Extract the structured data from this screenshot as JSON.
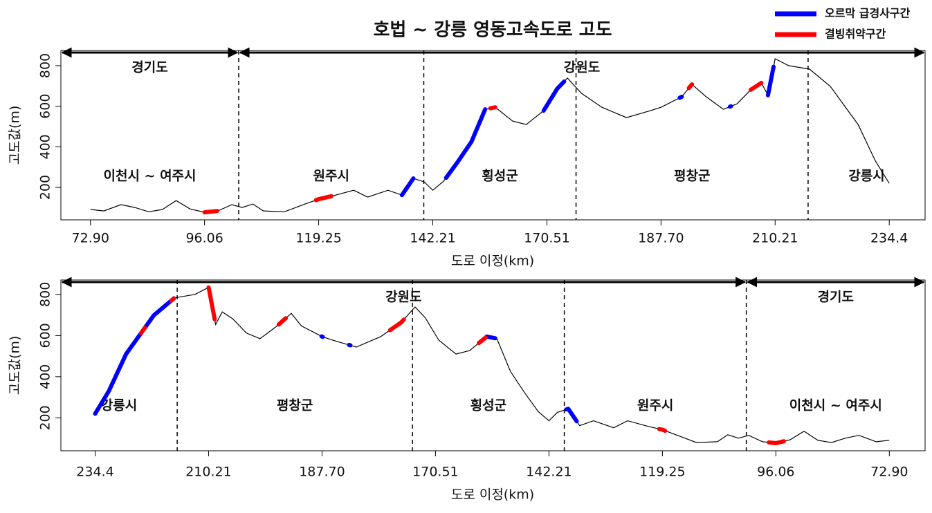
{
  "chart_data": [
    {
      "type": "line",
      "title": "호법 ~ 강릉 영동고속도로 고도",
      "xlabel": "도로 이정(km)",
      "ylabel": "고도값(m)",
      "xlim": [
        66.9,
        242.0
      ],
      "xticks": [
        {
          "value": 72.9,
          "label": "72.90"
        },
        96.06,
        119.25,
        142.21,
        170.51,
        {
          "value": 187.7,
          "label": "187.70"
        },
        210.21,
        234.4
      ],
      "ylim": [
        40,
        875
      ],
      "yticks": [
        200,
        400,
        600,
        800
      ],
      "color": "#000000",
      "x": [
        72.9,
        75.6,
        79.1,
        81.9,
        84.7,
        87.5,
        90.3,
        93.1,
        96.06,
        98.8,
        101.6,
        103.7,
        105.9,
        108.0,
        112.3,
        116.5,
        119.25,
        122.2,
        126.3,
        129.1,
        133.2,
        136.0,
        138.3,
        140.5,
        142.21,
        144.9,
        148.3,
        151.8,
        155.2,
        157.7,
        162.0,
        165.4,
        169.7,
        172.07,
        173.6,
        175.7,
        178.8,
        182.5,
        186.1,
        187.7,
        191.8,
        193.8,
        196.6,
        200.0,
        202.7,
        205.4,
        207.5,
        208.8,
        210.21,
        213.1,
        217.5,
        221.9,
        227.8,
        231.5,
        234.4
      ],
      "values": [
        91,
        84,
        115,
        101,
        80,
        91,
        135,
        94,
        77,
        84,
        115,
        101,
        118,
        84,
        80,
        118,
        142,
        159,
        186,
        152,
        186,
        162,
        244,
        227,
        186,
        231,
        323,
        425,
        585,
        595,
        527,
        510,
        578,
        687,
        739,
        664,
        595,
        544,
        578,
        595,
        647,
        708,
        647,
        585,
        612,
        681,
        715,
        654,
        834,
        800,
        783,
        698,
        510,
        329,
        220
      ],
      "series": [
        {
          "name": "오르막 급경사구간",
          "color": "#0000ff",
          "segments": [
            [
              136.0,
              138.3
            ],
            [
              145.5,
              155.2
            ],
            [
              169.7,
              173.1
            ],
            [
              191.4,
              191.8
            ],
            [
              201.3,
              201.5
            ],
            [
              208.8,
              209.9
            ]
          ]
        },
        {
          "name": "결빙취약구간",
          "color": "#ff0000",
          "segments": [
            [
              96.06,
              98.6
            ],
            [
              118.7,
              121.8
            ],
            [
              156.5,
              157.7
            ],
            [
              193.2,
              193.8
            ],
            [
              205.4,
              207.5
            ]
          ]
        }
      ],
      "boundaries": [
        103.0,
        140.4,
        174.9,
        217.2
      ],
      "regions": [
        "이천시 ~ 여주시",
        "원주시",
        "횡성군",
        "평창군",
        "강릉시"
      ],
      "provinces": [
        "경기도",
        "강원도"
      ]
    },
    {
      "type": "line",
      "xlabel": "도로 이정(km)",
      "ylabel": "고도값(m)",
      "xlim": [
        241.7,
        65.6
      ],
      "xticks": [
        234.4,
        210.21,
        {
          "value": 187.7,
          "label": "187.70"
        },
        170.51,
        142.21,
        119.25,
        96.06,
        {
          "value": 72.9,
          "label": "72.90"
        }
      ],
      "ylim": [
        40,
        870
      ],
      "yticks": [
        200,
        400,
        600,
        800
      ],
      "color": "#000000",
      "x": [
        72.9,
        75.6,
        79.1,
        81.9,
        84.7,
        87.5,
        90.3,
        93.1,
        96.06,
        98.8,
        101.6,
        103.7,
        105.9,
        108.0,
        112.3,
        116.5,
        119.25,
        122.2,
        126.3,
        129.1,
        133.2,
        136.0,
        138.3,
        140.5,
        142.21,
        144.9,
        148.3,
        151.8,
        155.2,
        157.7,
        162.0,
        165.4,
        169.7,
        172.07,
        173.6,
        175.7,
        178.8,
        182.5,
        186.1,
        187.7,
        191.8,
        193.8,
        196.6,
        200.0,
        202.7,
        205.4,
        207.5,
        208.8,
        210.21,
        213.1,
        217.5,
        221.9,
        227.8,
        231.5,
        234.4
      ],
      "values": [
        91,
        84,
        115,
        101,
        80,
        91,
        135,
        94,
        77,
        84,
        115,
        101,
        118,
        84,
        80,
        118,
        142,
        159,
        186,
        152,
        186,
        162,
        244,
        227,
        186,
        231,
        323,
        425,
        585,
        595,
        527,
        510,
        578,
        687,
        739,
        664,
        595,
        544,
        578,
        595,
        647,
        708,
        647,
        585,
        612,
        681,
        715,
        654,
        834,
        800,
        783,
        698,
        510,
        329,
        220
      ],
      "series": [
        {
          "color": "#0000ff",
          "segments": [
            [
              217.6,
              234.4
            ],
            [
              187.6,
              187.8
            ],
            [
              183.4,
              183.6
            ],
            [
              155.6,
              159.4
            ],
            [
              136.6,
              138.7
            ]
          ]
        },
        {
          "color": "#ff0000",
          "segments": [
            [
              223.8,
              224.6
            ],
            [
              217.6,
              218.2
            ],
            [
              209.0,
              210.21
            ],
            [
              194.9,
              196.3
            ],
            [
              175.3,
              177.4
            ],
            [
              158.0,
              159.7
            ],
            [
              118.7,
              119.9
            ],
            [
              94.4,
              97.5
            ]
          ]
        }
      ],
      "boundaries": [
        216.9,
        174.0,
        139.1,
        102.1
      ],
      "regions": [
        "강릉시",
        "평창군",
        "횡성군",
        "원주시",
        "이천시 ~ 여주시"
      ],
      "provinces": [
        "강원도",
        "경기도"
      ]
    }
  ]
}
